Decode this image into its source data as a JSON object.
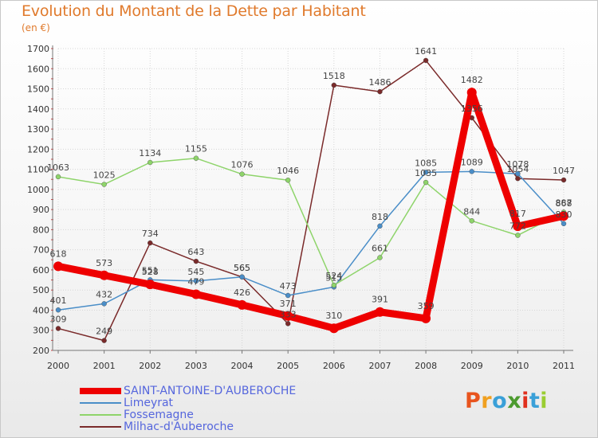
{
  "title": "Evolution du Montant de la Dette par Habitant",
  "unit_label": "(en €)",
  "logo_text": "Proxiti",
  "logo_colors": [
    "#e8541e",
    "#f0a020",
    "#3aa0d8",
    "#4c9b2f",
    "#e0301e",
    "#3aa0d8",
    "#9acd32"
  ],
  "chart_data": {
    "type": "line",
    "title": "Evolution du Montant de la Dette par Habitant",
    "ylabel": "(en €)",
    "xlabel": "",
    "x": [
      "2000",
      "2001",
      "2002",
      "2003",
      "2004",
      "2005",
      "2006",
      "2007",
      "2008",
      "2009",
      "2010",
      "2011"
    ],
    "ylim": [
      200,
      1700
    ],
    "yticks": [
      200,
      300,
      400,
      500,
      600,
      700,
      800,
      900,
      1000,
      1100,
      1200,
      1300,
      1400,
      1500,
      1600,
      1700
    ],
    "grid": true,
    "legend_position": "bottom-left",
    "series": [
      {
        "name": "Milhac-d'Auberoche",
        "color": "#7a2a2a",
        "values": [
          309,
          249,
          734,
          643,
          565,
          333,
          1518,
          1486,
          1641,
          1356,
          1054,
          1047
        ],
        "labels": [
          "309",
          "249",
          "734",
          "643",
          "565",
          "333",
          "1518",
          "1486",
          "1641",
          "1356",
          "1054",
          "1047"
        ]
      },
      {
        "name": "Limeyrat",
        "color": "#4a8ec8",
        "values": [
          401,
          432,
          551,
          545,
          565,
          473,
          515,
          818,
          1085,
          1089,
          1078,
          830
        ],
        "labels": [
          "401",
          "432",
          "551",
          "545",
          "565",
          "473",
          "515",
          "818",
          "1085",
          "1089",
          "1078",
          "830"
        ]
      },
      {
        "name": "Fossemagne",
        "color": "#8ed46a",
        "values": [
          1063,
          1025,
          1134,
          1155,
          1076,
          1046,
          524,
          661,
          1035,
          844,
          772,
          887
        ],
        "labels": [
          "1063",
          "1025",
          "1134",
          "1155",
          "1076",
          "1046",
          "524",
          "661",
          "1035",
          "844",
          "772",
          "887"
        ]
      },
      {
        "name": "SAINT-ANTOINE-D'AUBEROCHE",
        "color": "#ee0000",
        "values": [
          618,
          573,
          528,
          479,
          426,
          371,
          310,
          391,
          359,
          1482,
          817,
          868
        ],
        "labels": [
          "618",
          "573",
          "528",
          "479",
          "426",
          "371",
          "310",
          "391",
          "359",
          "1482",
          "817",
          "868"
        ]
      }
    ]
  },
  "legend": [
    {
      "label": "SAINT-ANTOINE-D'AUBEROCHE",
      "color": "#ee0000",
      "label_color": "#5566dd"
    },
    {
      "label": "Limeyrat",
      "color": "#4a8ec8",
      "label_color": "#5566dd"
    },
    {
      "label": "Fossemagne",
      "color": "#8ed46a",
      "label_color": "#5566dd"
    },
    {
      "label": "Milhac-d'Auberoche",
      "color": "#7a2a2a",
      "label_color": "#5566dd"
    }
  ]
}
